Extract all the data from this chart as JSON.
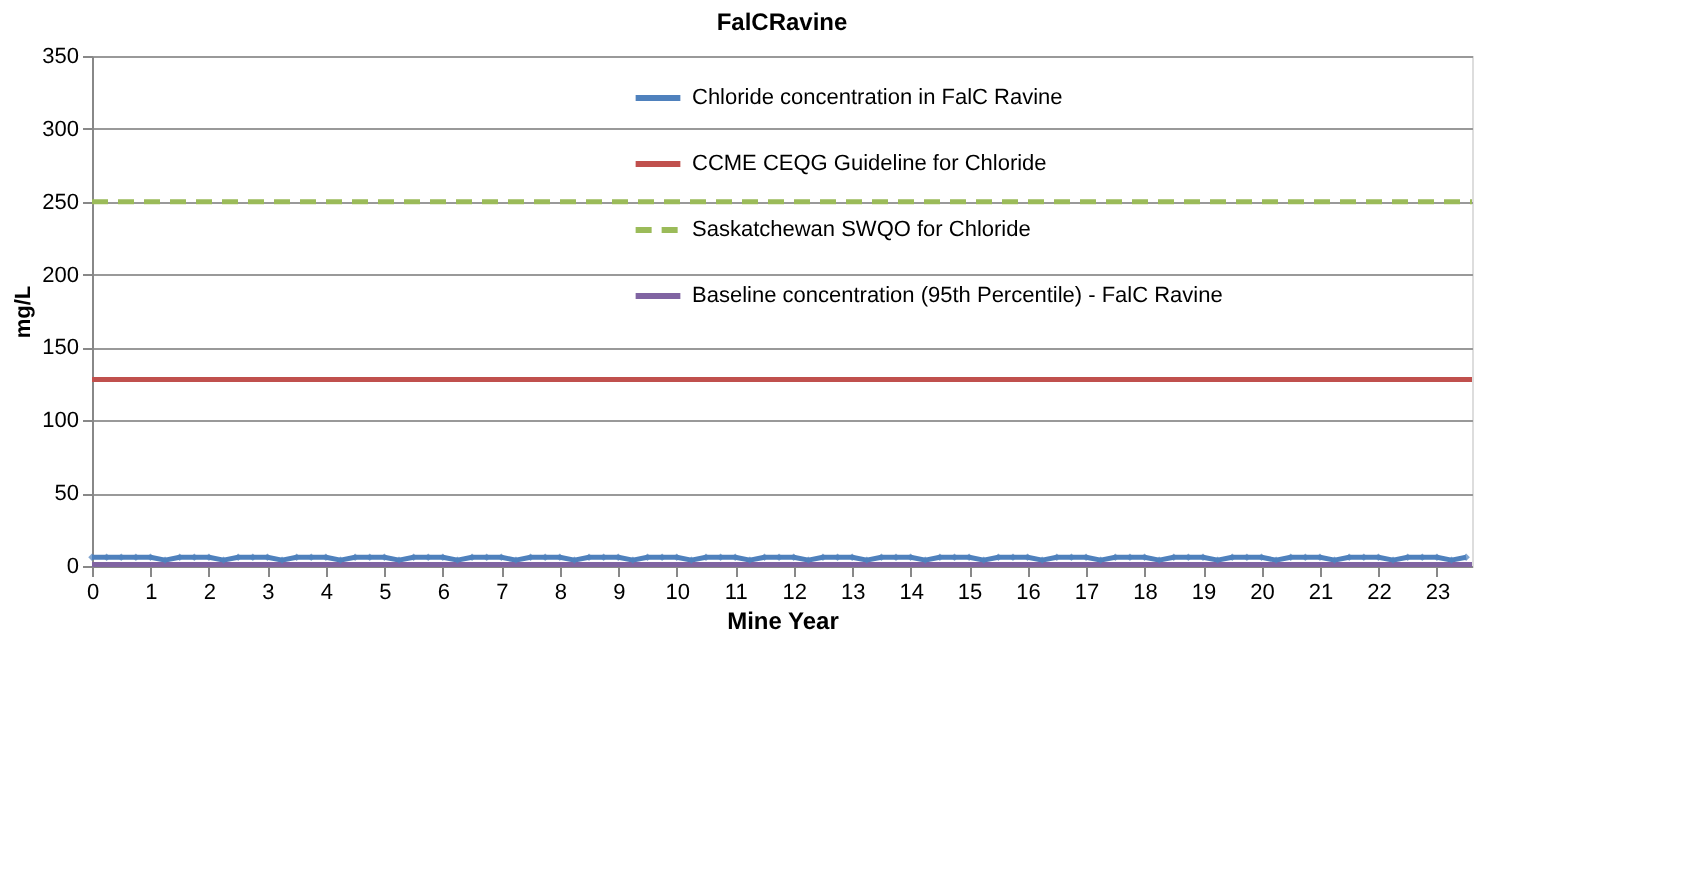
{
  "chart_data": {
    "type": "line",
    "title": "FalCRavine",
    "xlabel": "Mine Year",
    "ylabel": "mg/L",
    "xlim": [
      0,
      23.6
    ],
    "xticks": [
      0,
      1,
      2,
      3,
      4,
      5,
      6,
      7,
      8,
      9,
      10,
      11,
      12,
      13,
      14,
      15,
      16,
      17,
      18,
      19,
      20,
      21,
      22,
      23
    ],
    "ylim": [
      0,
      350
    ],
    "yticks": [
      0,
      50,
      100,
      150,
      200,
      250,
      300,
      350
    ],
    "grid": "y",
    "legend": "top",
    "series": [
      {
        "name": "Chloride concentration in FalC Ravine",
        "color": "#4f81bd",
        "marker": "diamond",
        "line_style": "solid",
        "x": [
          0,
          0.25,
          0.5,
          0.75,
          1,
          1.25,
          1.5,
          1.75,
          2,
          2.25,
          2.5,
          2.75,
          3,
          3.25,
          3.5,
          3.75,
          4,
          4.25,
          4.5,
          4.75,
          5,
          5.25,
          5.5,
          5.75,
          6,
          6.25,
          6.5,
          6.75,
          7,
          7.25,
          7.5,
          7.75,
          8,
          8.25,
          8.5,
          8.75,
          9,
          9.25,
          9.5,
          9.75,
          10,
          10.25,
          10.5,
          10.75,
          11,
          11.25,
          11.5,
          11.75,
          12,
          12.25,
          12.5,
          12.75,
          13,
          13.25,
          13.5,
          13.75,
          14,
          14.25,
          14.5,
          14.75,
          15,
          15.25,
          15.5,
          15.75,
          16,
          16.25,
          16.5,
          16.75,
          17,
          17.25,
          17.5,
          17.75,
          18,
          18.25,
          18.5,
          18.75,
          19,
          19.25,
          19.5,
          19.75,
          20,
          20.25,
          20.5,
          20.75,
          21,
          21.25,
          21.5,
          21.75,
          22,
          22.25,
          22.5,
          22.75,
          23,
          23.25,
          23.5
        ],
        "values": [
          6,
          6,
          6,
          6,
          6,
          4,
          6,
          6,
          6,
          4,
          6,
          6,
          6,
          4,
          6,
          6,
          6,
          4,
          6,
          6,
          6,
          4,
          6,
          6,
          6,
          4,
          6,
          6,
          6,
          4,
          6,
          6,
          6,
          4,
          6,
          6,
          6,
          4,
          6,
          6,
          6,
          4,
          6,
          6,
          6,
          4,
          6,
          6,
          6,
          4,
          6,
          6,
          6,
          4,
          6,
          6,
          6,
          4,
          6,
          6,
          6,
          4,
          6,
          6,
          6,
          4,
          6,
          6,
          6,
          4,
          6,
          6,
          6,
          4,
          6,
          6,
          6,
          4,
          6,
          6,
          6,
          4,
          6,
          6,
          6,
          4,
          6,
          6,
          6,
          4,
          6,
          6,
          6,
          4,
          6
        ]
      },
      {
        "name": "CCME CEQG Guideline for Chloride",
        "color": "#c0504d",
        "marker": "none",
        "line_style": "solid",
        "x": [
          0,
          23.6
        ],
        "values": [
          128,
          128
        ]
      },
      {
        "name": "Saskatchewan SWQO for Chloride",
        "color": "#9bbb59",
        "marker": "none",
        "line_style": "dashed",
        "x": [
          0,
          23.6
        ],
        "values": [
          250,
          250
        ]
      },
      {
        "name": "Baseline concentration (95th Percentile) - FalC Ravine",
        "color": "#8064a2",
        "marker": "none",
        "line_style": "solid",
        "x": [
          0,
          23.6
        ],
        "values": [
          1,
          1
        ]
      }
    ]
  }
}
